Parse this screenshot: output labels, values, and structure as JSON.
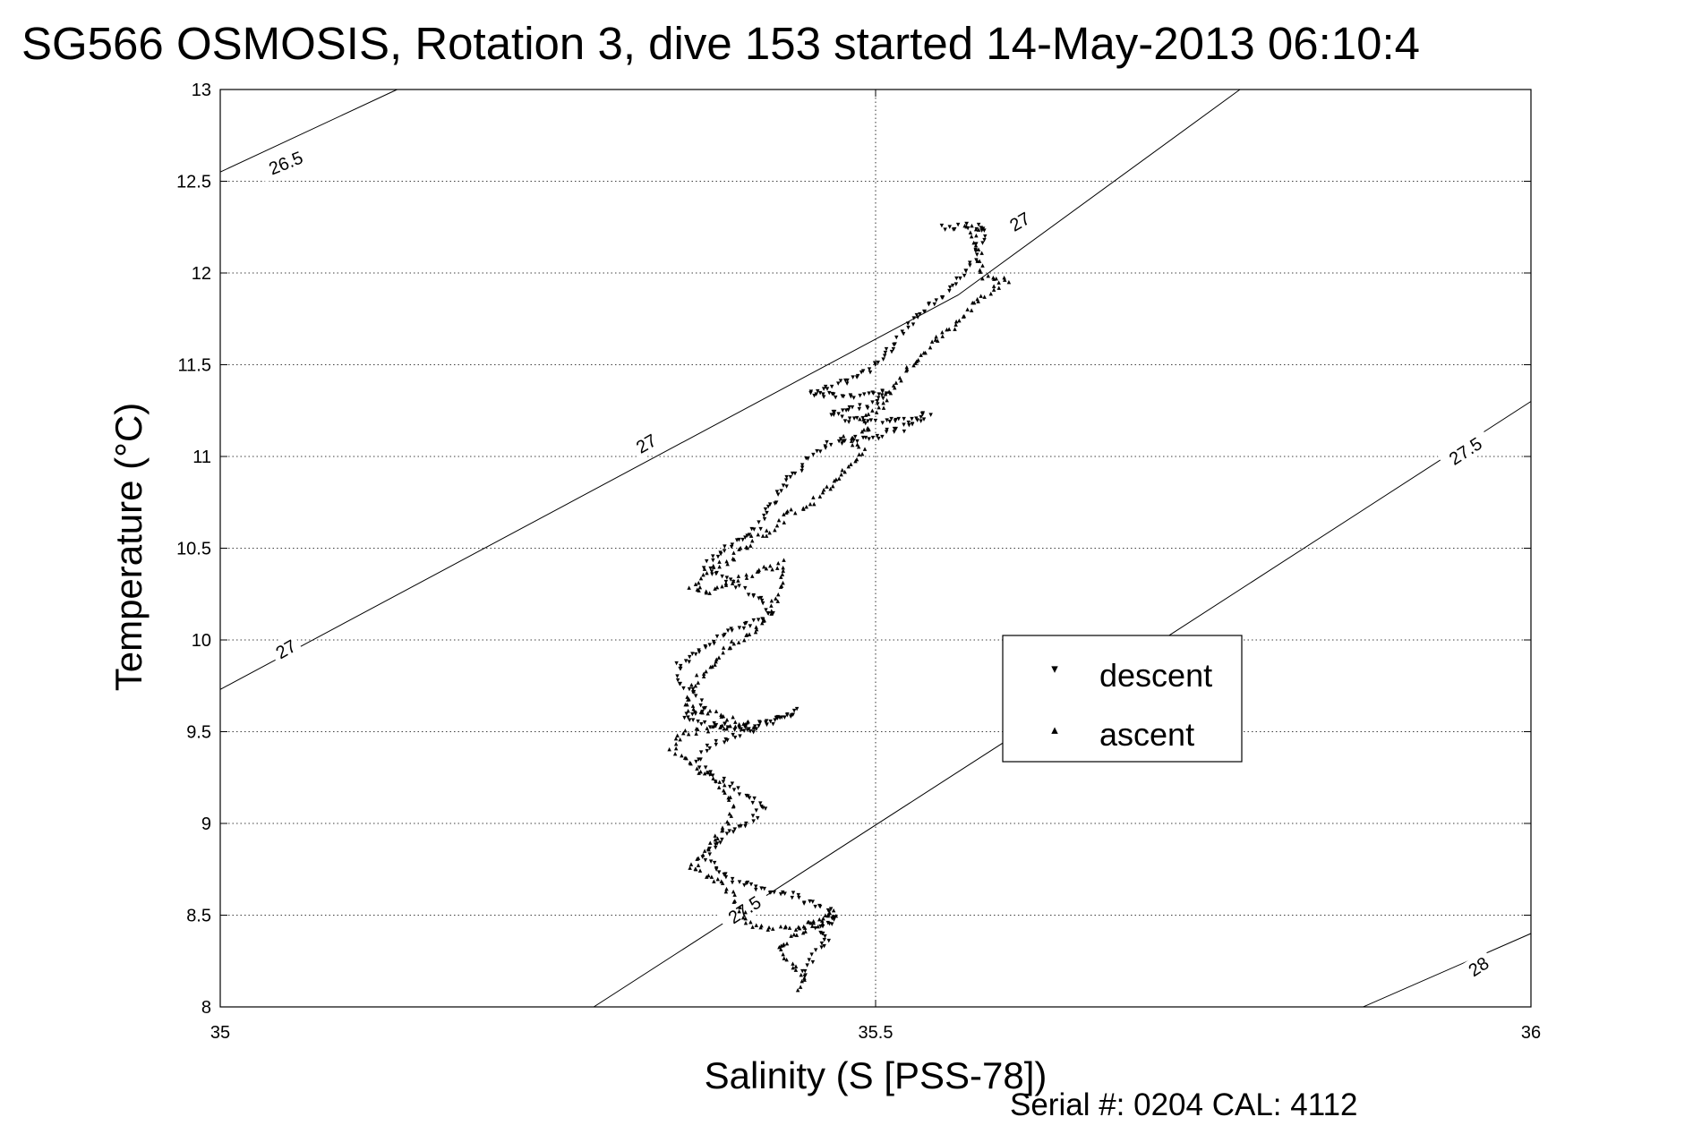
{
  "chart_data": {
    "type": "scatter",
    "title": "SG566 OSMOSIS, Rotation 3, dive 153 started 14-May-2013 06:10:4",
    "xlabel": "Salinity (S [PSS-78])",
    "ylabel": "Temperature (°C)",
    "xlim": [
      35,
      36
    ],
    "ylim": [
      8,
      13
    ],
    "xticks": [
      "35",
      "35.5",
      "36"
    ],
    "yticks": [
      "8",
      "8.5",
      "9",
      "9.5",
      "10",
      "10.5",
      "11",
      "11.5",
      "12",
      "12.5",
      "13"
    ],
    "grid": true,
    "footer": "Serial #: 0204  CAL: 4112",
    "legend": {
      "placement": "right-middle",
      "entries": [
        "descent",
        "ascent"
      ]
    },
    "colors": {
      "descent": "#0000ff",
      "ascent": "#ff0000",
      "contour": "#000000"
    },
    "contours": [
      {
        "label": "26.5",
        "points": [
          [
            35.0,
            12.55
          ],
          [
            35.135,
            13.0
          ]
        ]
      },
      {
        "label": "27",
        "points": [
          [
            35.0,
            9.73
          ],
          [
            35.563,
            11.88
          ],
          [
            35.778,
            13.0
          ]
        ]
      },
      {
        "label": "27.5",
        "points": [
          [
            35.285,
            8.0
          ],
          [
            35.593,
            9.42
          ],
          [
            36.0,
            11.3
          ]
        ]
      },
      {
        "label": "28",
        "points": [
          [
            35.872,
            8.0
          ],
          [
            36.0,
            8.4
          ]
        ]
      }
    ],
    "contour_labels": [
      {
        "text": "26.5",
        "x": 35.05,
        "y": 12.6,
        "angle": -22
      },
      {
        "text": "27",
        "x": 35.05,
        "y": 9.95,
        "angle": -30
      },
      {
        "text": "27",
        "x": 35.325,
        "y": 11.07,
        "angle": -30
      },
      {
        "text": "27",
        "x": 35.61,
        "y": 12.28,
        "angle": -30
      },
      {
        "text": "27.5",
        "x": 35.4,
        "y": 8.53,
        "angle": -33
      },
      {
        "text": "27.5",
        "x": 35.95,
        "y": 11.03,
        "angle": -33
      },
      {
        "text": "28",
        "x": 35.96,
        "y": 8.22,
        "angle": -33
      }
    ],
    "series": [
      {
        "name": "descent",
        "path": [
          [
            35.55,
            12.26
          ],
          [
            35.57,
            12.26
          ],
          [
            35.585,
            12.25
          ],
          [
            35.58,
            12.18
          ],
          [
            35.575,
            12.08
          ],
          [
            35.565,
            11.98
          ],
          [
            35.555,
            11.9
          ],
          [
            35.54,
            11.82
          ],
          [
            35.525,
            11.72
          ],
          [
            35.515,
            11.62
          ],
          [
            35.5,
            11.52
          ],
          [
            35.49,
            11.45
          ],
          [
            35.47,
            11.4
          ],
          [
            35.45,
            11.35
          ],
          [
            35.485,
            11.33
          ],
          [
            35.51,
            11.35
          ],
          [
            35.495,
            11.28
          ],
          [
            35.465,
            11.25
          ],
          [
            35.48,
            11.2
          ],
          [
            35.52,
            11.2
          ],
          [
            35.54,
            11.24
          ],
          [
            35.525,
            11.17
          ],
          [
            35.5,
            11.12
          ],
          [
            35.47,
            11.09
          ],
          [
            35.46,
            11.05
          ],
          [
            35.45,
            11.0
          ],
          [
            35.44,
            10.93
          ],
          [
            35.43,
            10.85
          ],
          [
            35.42,
            10.72
          ],
          [
            35.41,
            10.62
          ],
          [
            35.395,
            10.55
          ],
          [
            35.38,
            10.48
          ],
          [
            35.37,
            10.41
          ],
          [
            35.385,
            10.34
          ],
          [
            35.4,
            10.28
          ],
          [
            35.415,
            10.22
          ],
          [
            35.42,
            10.15
          ],
          [
            35.405,
            10.1
          ],
          [
            35.385,
            10.04
          ],
          [
            35.37,
            9.96
          ],
          [
            35.35,
            9.87
          ],
          [
            35.35,
            9.78
          ],
          [
            35.365,
            9.7
          ],
          [
            35.37,
            9.63
          ],
          [
            35.355,
            9.58
          ],
          [
            35.37,
            9.55
          ],
          [
            35.4,
            9.52
          ],
          [
            35.425,
            9.57
          ],
          [
            35.44,
            9.62
          ],
          [
            35.42,
            9.56
          ],
          [
            35.39,
            9.48
          ],
          [
            35.37,
            9.41
          ],
          [
            35.365,
            9.33
          ],
          [
            35.38,
            9.25
          ],
          [
            35.4,
            9.17
          ],
          [
            35.415,
            9.1
          ],
          [
            35.405,
            9.02
          ],
          [
            35.385,
            8.93
          ],
          [
            35.37,
            8.84
          ],
          [
            35.38,
            8.76
          ],
          [
            35.39,
            8.7
          ],
          [
            35.41,
            8.66
          ],
          [
            35.435,
            8.62
          ],
          [
            35.45,
            8.58
          ],
          [
            35.465,
            8.54
          ],
          [
            35.47,
            8.48
          ],
          [
            35.455,
            8.43
          ],
          [
            35.465,
            8.37
          ],
          [
            35.455,
            8.3
          ],
          [
            35.445,
            8.22
          ],
          [
            35.445,
            8.15
          ]
        ]
      },
      {
        "name": "ascent",
        "path": [
          [
            35.44,
            8.11
          ],
          [
            35.445,
            8.18
          ],
          [
            35.435,
            8.25
          ],
          [
            35.425,
            8.33
          ],
          [
            35.44,
            8.4
          ],
          [
            35.455,
            8.46
          ],
          [
            35.47,
            8.53
          ],
          [
            35.46,
            8.48
          ],
          [
            35.44,
            8.44
          ],
          [
            35.42,
            8.43
          ],
          [
            35.405,
            8.46
          ],
          [
            35.395,
            8.55
          ],
          [
            35.39,
            8.63
          ],
          [
            35.38,
            8.7
          ],
          [
            35.36,
            8.76
          ],
          [
            35.37,
            8.85
          ],
          [
            35.38,
            8.95
          ],
          [
            35.39,
            9.05
          ],
          [
            35.39,
            9.15
          ],
          [
            35.375,
            9.25
          ],
          [
            35.36,
            9.33
          ],
          [
            35.345,
            9.42
          ],
          [
            35.35,
            9.5
          ],
          [
            35.375,
            9.53
          ],
          [
            35.405,
            9.54
          ],
          [
            35.38,
            9.6
          ],
          [
            35.355,
            9.64
          ],
          [
            35.36,
            9.75
          ],
          [
            35.37,
            9.85
          ],
          [
            35.385,
            9.95
          ],
          [
            35.405,
            10.05
          ],
          [
            35.42,
            10.15
          ],
          [
            35.425,
            10.25
          ],
          [
            35.43,
            10.35
          ],
          [
            35.43,
            10.43
          ],
          [
            35.4,
            10.35
          ],
          [
            35.375,
            10.28
          ],
          [
            35.36,
            10.3
          ],
          [
            35.37,
            10.38
          ],
          [
            35.39,
            10.45
          ],
          [
            35.405,
            10.55
          ],
          [
            35.42,
            10.6
          ],
          [
            35.43,
            10.68
          ],
          [
            35.45,
            10.75
          ],
          [
            35.46,
            10.82
          ],
          [
            35.47,
            10.88
          ],
          [
            35.48,
            10.95
          ],
          [
            35.49,
            11.05
          ],
          [
            35.475,
            11.1
          ],
          [
            35.495,
            11.15
          ],
          [
            35.49,
            11.2
          ],
          [
            35.505,
            11.28
          ],
          [
            35.51,
            11.35
          ],
          [
            35.52,
            11.45
          ],
          [
            35.535,
            11.55
          ],
          [
            35.545,
            11.65
          ],
          [
            35.565,
            11.75
          ],
          [
            35.575,
            11.85
          ],
          [
            35.59,
            11.92
          ],
          [
            35.6,
            11.97
          ],
          [
            35.58,
            12.0
          ],
          [
            35.58,
            12.1
          ],
          [
            35.575,
            12.2
          ],
          [
            35.57,
            12.26
          ],
          [
            35.58,
            12.26
          ]
        ]
      }
    ]
  }
}
